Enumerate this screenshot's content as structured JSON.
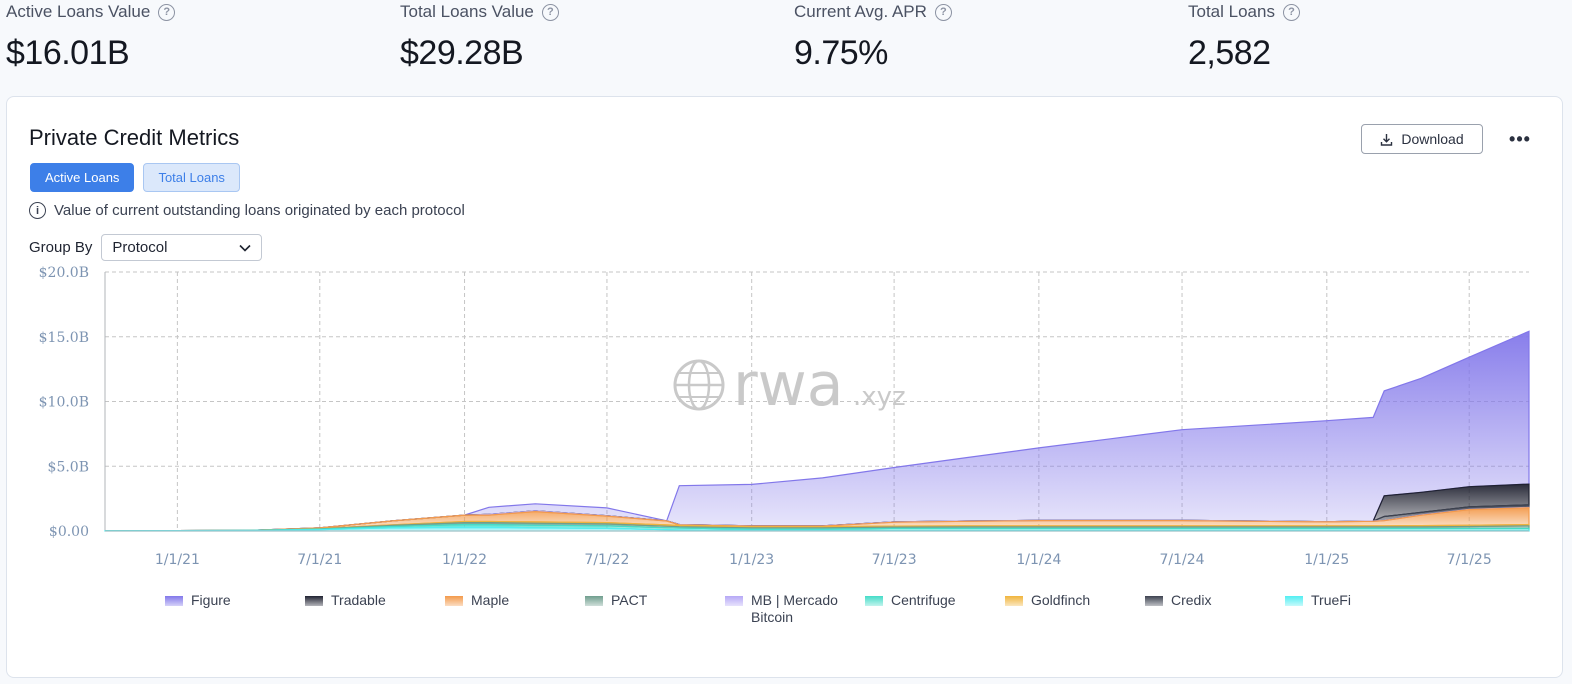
{
  "stats": [
    {
      "label": "Active Loans Value",
      "value": "$16.01B"
    },
    {
      "label": "Total Loans Value",
      "value": "$29.28B"
    },
    {
      "label": "Current Avg. APR",
      "value": "9.75%"
    },
    {
      "label": "Total Loans",
      "value": "2,582"
    }
  ],
  "card": {
    "title": "Private Credit Metrics",
    "download_label": "Download",
    "more_label": "•••",
    "tabs": [
      {
        "label": "Active Loans",
        "active": true
      },
      {
        "label": "Total Loans",
        "active": false
      }
    ],
    "info_text": "Value of current outstanding loans originated by each protocol",
    "group_by_label": "Group By",
    "group_by_value": "Protocol"
  },
  "watermark": {
    "main": "rwa",
    "suffix": ".xyz"
  },
  "chart_data": {
    "type": "area",
    "stacked": true,
    "y_ticks": [
      "$20.0B",
      "$15.0B",
      "$10.0B",
      "$5.0B",
      "$0.00"
    ],
    "ylim": [
      0,
      20
    ],
    "x_ticks": [
      "1/1/21",
      "7/1/21",
      "1/1/22",
      "7/1/22",
      "1/1/23",
      "7/1/23",
      "1/1/24",
      "7/1/24",
      "1/1/25",
      "7/1/25"
    ],
    "xlim": [
      "2020-10-01",
      "2025-09-15"
    ],
    "grid": true,
    "legend_position": "bottom",
    "x": [
      "2020-10-01",
      "2021-01-01",
      "2021-04-01",
      "2021-07-01",
      "2021-10-01",
      "2022-01-01",
      "2022-02-01",
      "2022-04-01",
      "2022-07-01",
      "2022-09-15",
      "2022-10-01",
      "2023-01-01",
      "2023-04-01",
      "2023-07-01",
      "2023-10-01",
      "2024-01-01",
      "2024-04-01",
      "2024-07-01",
      "2024-10-01",
      "2025-01-01",
      "2025-03-01",
      "2025-03-15",
      "2025-05-01",
      "2025-07-01",
      "2025-09-15"
    ],
    "series": [
      {
        "name": "TrueFi",
        "color": "#52eef2",
        "values": [
          0.02,
          0.03,
          0.04,
          0.1,
          0.25,
          0.3,
          0.3,
          0.25,
          0.2,
          0.1,
          0.08,
          0.05,
          0.05,
          0.05,
          0.05,
          0.05,
          0.05,
          0.05,
          0.05,
          0.05,
          0.05,
          0.05,
          0.05,
          0.05,
          0.05
        ]
      },
      {
        "name": "Centrifuge",
        "color": "#45dcc8",
        "values": [
          0,
          0,
          0.01,
          0.05,
          0.1,
          0.2,
          0.2,
          0.2,
          0.2,
          0.15,
          0.15,
          0.1,
          0.1,
          0.15,
          0.15,
          0.15,
          0.15,
          0.15,
          0.15,
          0.15,
          0.15,
          0.15,
          0.15,
          0.15,
          0.15
        ]
      },
      {
        "name": "PACT",
        "color": "#6f9e8e",
        "values": [
          0,
          0,
          0,
          0.02,
          0.08,
          0.15,
          0.15,
          0.15,
          0.15,
          0.12,
          0.1,
          0.1,
          0.1,
          0.1,
          0.12,
          0.12,
          0.12,
          0.12,
          0.12,
          0.12,
          0.12,
          0.12,
          0.12,
          0.15,
          0.2
        ]
      },
      {
        "name": "Goldfinch",
        "color": "#f0b43c",
        "values": [
          0,
          0,
          0,
          0.02,
          0.05,
          0.08,
          0.08,
          0.1,
          0.1,
          0.1,
          0.1,
          0.08,
          0.08,
          0.08,
          0.08,
          0.08,
          0.08,
          0.08,
          0.08,
          0.08,
          0.08,
          0.08,
          0.1,
          0.1,
          0.1
        ]
      },
      {
        "name": "Maple",
        "color": "#f39a4b",
        "values": [
          0,
          0,
          0,
          0.05,
          0.3,
          0.5,
          0.5,
          0.8,
          0.5,
          0.3,
          0.05,
          0.05,
          0.05,
          0.3,
          0.35,
          0.4,
          0.4,
          0.4,
          0.35,
          0.3,
          0.35,
          0.4,
          0.8,
          1.2,
          1.3
        ]
      },
      {
        "name": "MB | Mercado Bitcoin",
        "color": "#b6a8f6",
        "values": [
          0,
          0,
          0,
          0,
          0,
          0,
          0.05,
          0.05,
          0.03,
          0.02,
          0.02,
          0.02,
          0.02,
          0.02,
          0.02,
          0.02,
          0.02,
          0.02,
          0.02,
          0.02,
          0.02,
          0.02,
          0.02,
          0.02,
          0.02
        ]
      },
      {
        "name": "Credix",
        "color": "#3d4250",
        "values": [
          0,
          0,
          0,
          0,
          0,
          0,
          0,
          0,
          0,
          0,
          0,
          0,
          0,
          0,
          0,
          0,
          0,
          0,
          0,
          0,
          0,
          0.3,
          0.2,
          0.2,
          0.2
        ]
      },
      {
        "name": "Tradable",
        "color": "#202231",
        "values": [
          0,
          0,
          0,
          0,
          0,
          0,
          0,
          0,
          0,
          0,
          0,
          0,
          0,
          0,
          0,
          0,
          0,
          0,
          0,
          0,
          0,
          1.6,
          1.55,
          1.55,
          1.6
        ]
      },
      {
        "name": "Figure",
        "color": "#8277ea",
        "values": [
          0,
          0,
          0,
          0,
          0,
          0,
          0.55,
          0.55,
          0.6,
          0.0,
          3.0,
          3.2,
          3.7,
          4.2,
          4.9,
          5.6,
          6.3,
          7.0,
          7.4,
          7.8,
          8.0,
          8.1,
          8.8,
          10.0,
          11.8
        ]
      }
    ]
  },
  "legend": [
    {
      "label": "Figure",
      "color": "#8277ea"
    },
    {
      "label": "Tradable",
      "color": "#202231"
    },
    {
      "label": "Maple",
      "color": "#f39a4b"
    },
    {
      "label": "PACT",
      "color": "#6f9e8e"
    },
    {
      "label": "MB | Mercado Bitcoin",
      "color": "#b6a8f6"
    },
    {
      "label": "Centrifuge",
      "color": "#45dcc8"
    },
    {
      "label": "Goldfinch",
      "color": "#f0b43c"
    },
    {
      "label": "Credix",
      "color": "#3d4250"
    },
    {
      "label": "TrueFi",
      "color": "#52eef2"
    }
  ],
  "colors": {
    "accent": "#3d7fe8",
    "grid": "#c5c5c5",
    "axis_text": "#7d94b2"
  }
}
